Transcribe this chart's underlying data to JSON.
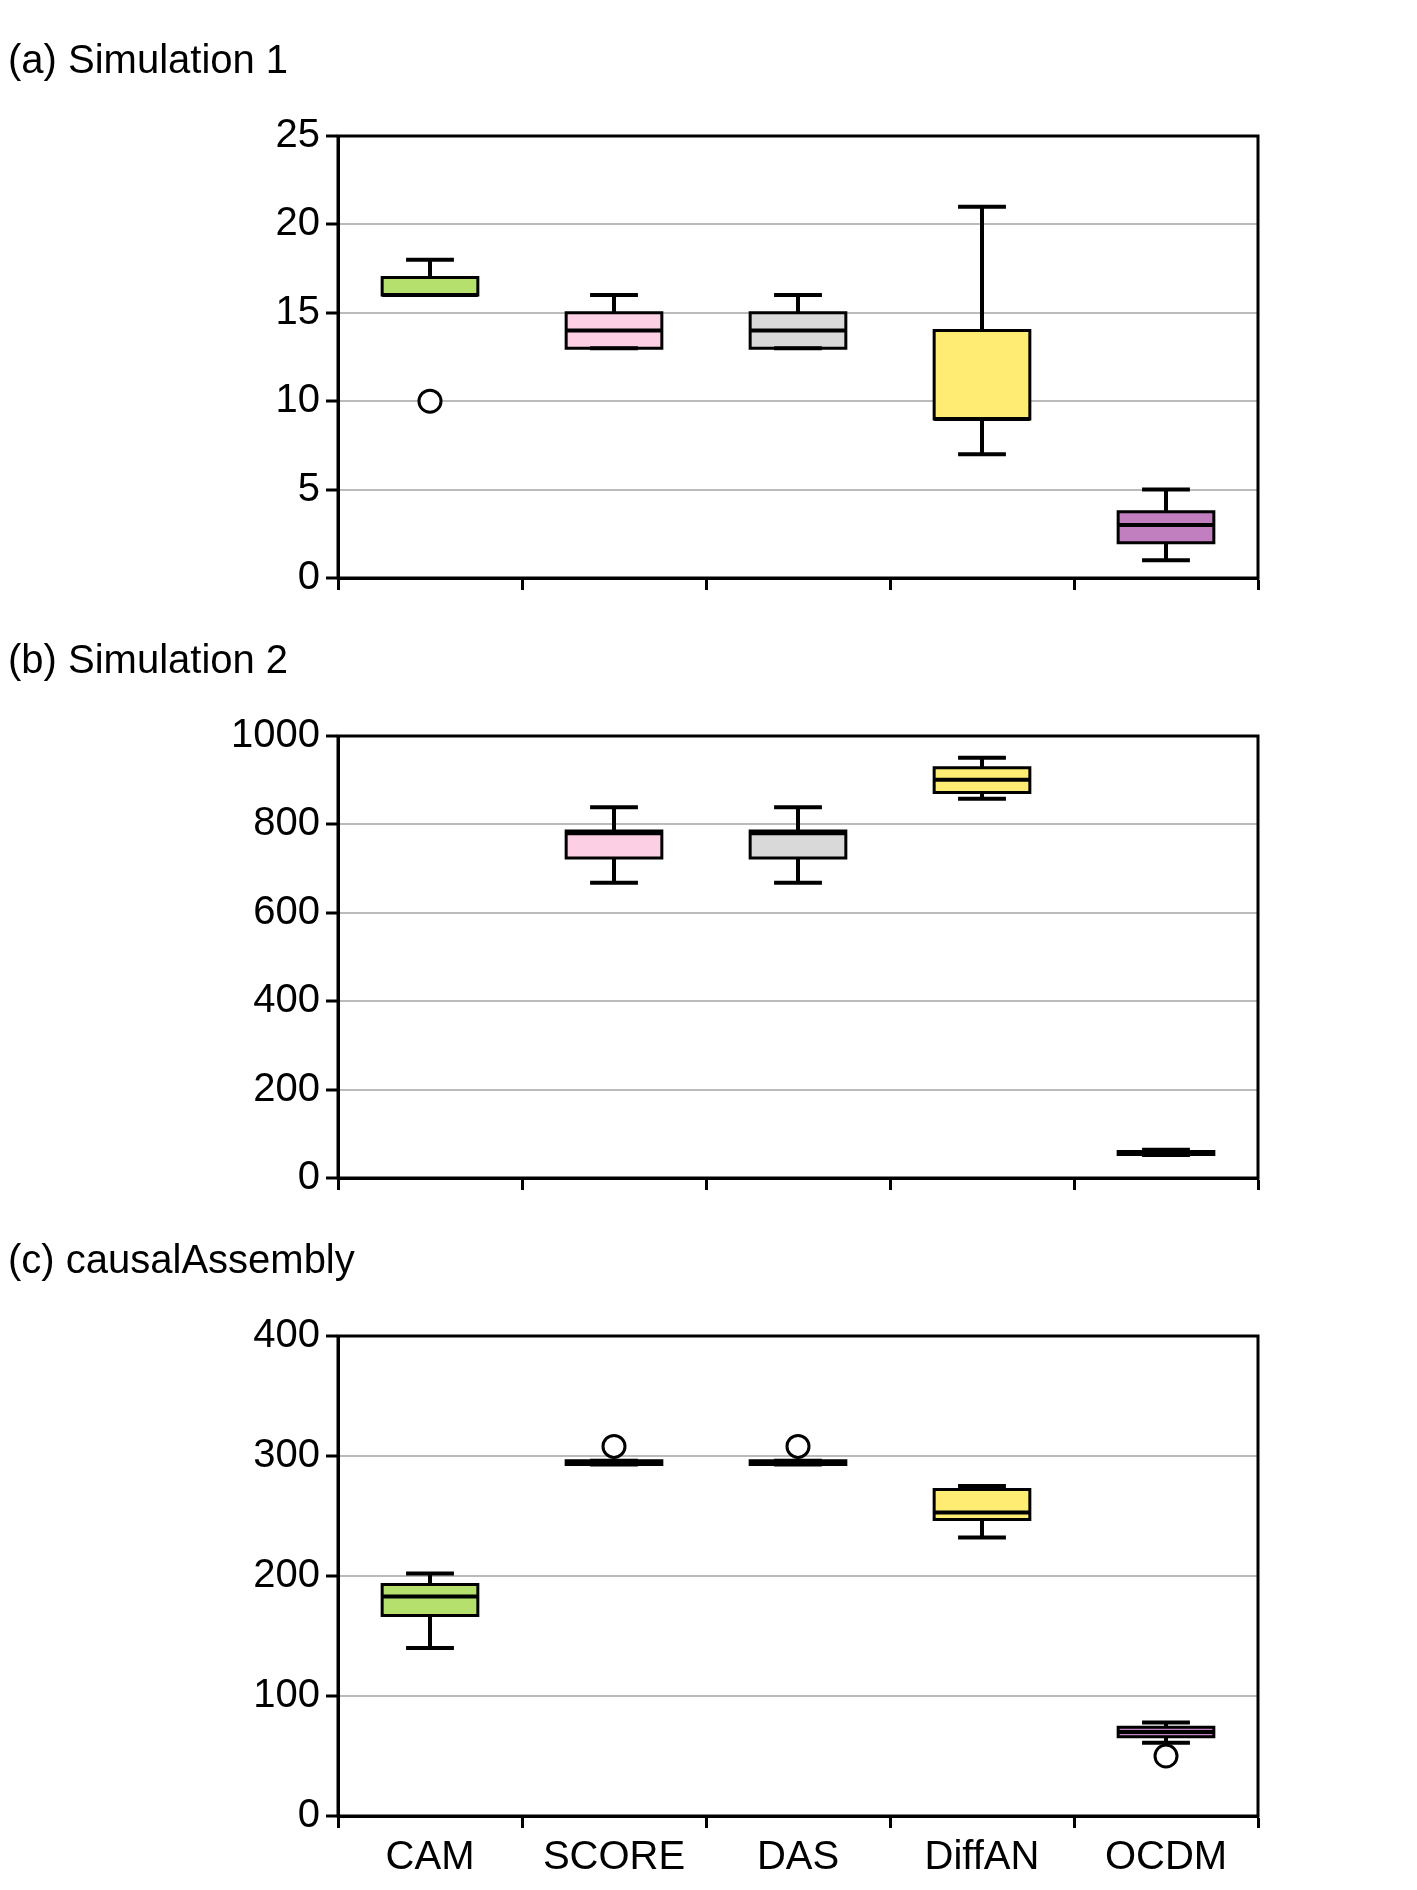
{
  "chart_data": [
    {
      "type": "box",
      "title": "(a) Simulation 1",
      "categories": [
        null,
        null,
        null,
        null,
        null
      ],
      "colors": [
        "#b5e06e",
        "#fccfe5",
        "#d9d9d9",
        "#ffec72",
        "#c17fc0"
      ],
      "ylim": [
        0,
        25
      ],
      "yticks": [
        0,
        5,
        10,
        15,
        20,
        25
      ],
      "grid": "y",
      "tick_labels": "y",
      "boxes": [
        {
          "low": 16,
          "q1": 16,
          "median": 16,
          "q3": 17,
          "high": 18,
          "outliers": [
            10
          ]
        },
        {
          "low": 13,
          "q1": 13,
          "median": 14,
          "q3": 15,
          "high": 16
        },
        {
          "low": 13,
          "q1": 13,
          "median": 14,
          "q3": 15,
          "high": 16
        },
        {
          "low": 7,
          "q1": 9,
          "median": 9,
          "q3": 14,
          "high": 21
        },
        {
          "low": 1,
          "q1": 2,
          "median": 3,
          "q3": 3.75,
          "high": 5
        }
      ]
    },
    {
      "type": "box",
      "title": "(b) Simulation 2",
      "categories": [
        null,
        null,
        null,
        null,
        null
      ],
      "colors": [
        "#b5e06e",
        "#fccfe5",
        "#d9d9d9",
        "#ffec72",
        "#c17fc0"
      ],
      "ylim": [
        0,
        1000
      ],
      "yticks": [
        0,
        200,
        400,
        600,
        800,
        1000
      ],
      "grid": "y",
      "tick_labels": "y",
      "boxes": [
        null,
        {
          "low": 668,
          "q1": 724,
          "median": 780,
          "q3": 785,
          "high": 839
        },
        {
          "low": 668,
          "q1": 724,
          "median": 780,
          "q3": 785,
          "high": 839
        },
        {
          "low": 858,
          "q1": 872,
          "median": 901,
          "q3": 928,
          "high": 951
        },
        {
          "low": 52,
          "q1": 53,
          "median": 55,
          "q3": 60,
          "high": 64
        }
      ]
    },
    {
      "type": "box",
      "title": "(c) causalAssembly",
      "categories": [
        "CAM",
        "SCORE",
        "DAS",
        "DiffAN",
        "OCDM"
      ],
      "colors": [
        "#b5e06e",
        "#fccfe5",
        "#d9d9d9",
        "#ffec72",
        "#c17fc0"
      ],
      "ylim": [
        0,
        400
      ],
      "yticks": [
        0,
        100,
        200,
        300,
        400
      ],
      "grid": "y",
      "boxes": [
        {
          "low": 140,
          "q1": 167,
          "median": 183,
          "q3": 193,
          "high": 202
        },
        {
          "low": 293,
          "q1": 293,
          "median": 295,
          "q3": 296,
          "high": 296,
          "outliers": [
            308
          ]
        },
        {
          "low": 293,
          "q1": 293,
          "median": 295,
          "q3": 296,
          "high": 296,
          "outliers": [
            308
          ]
        },
        {
          "low": 232,
          "q1": 247,
          "median": 253,
          "q3": 272,
          "high": 275
        },
        {
          "low": 61,
          "q1": 66,
          "median": 70,
          "q3": 74,
          "high": 78,
          "outliers": [
            50
          ]
        }
      ]
    }
  ]
}
